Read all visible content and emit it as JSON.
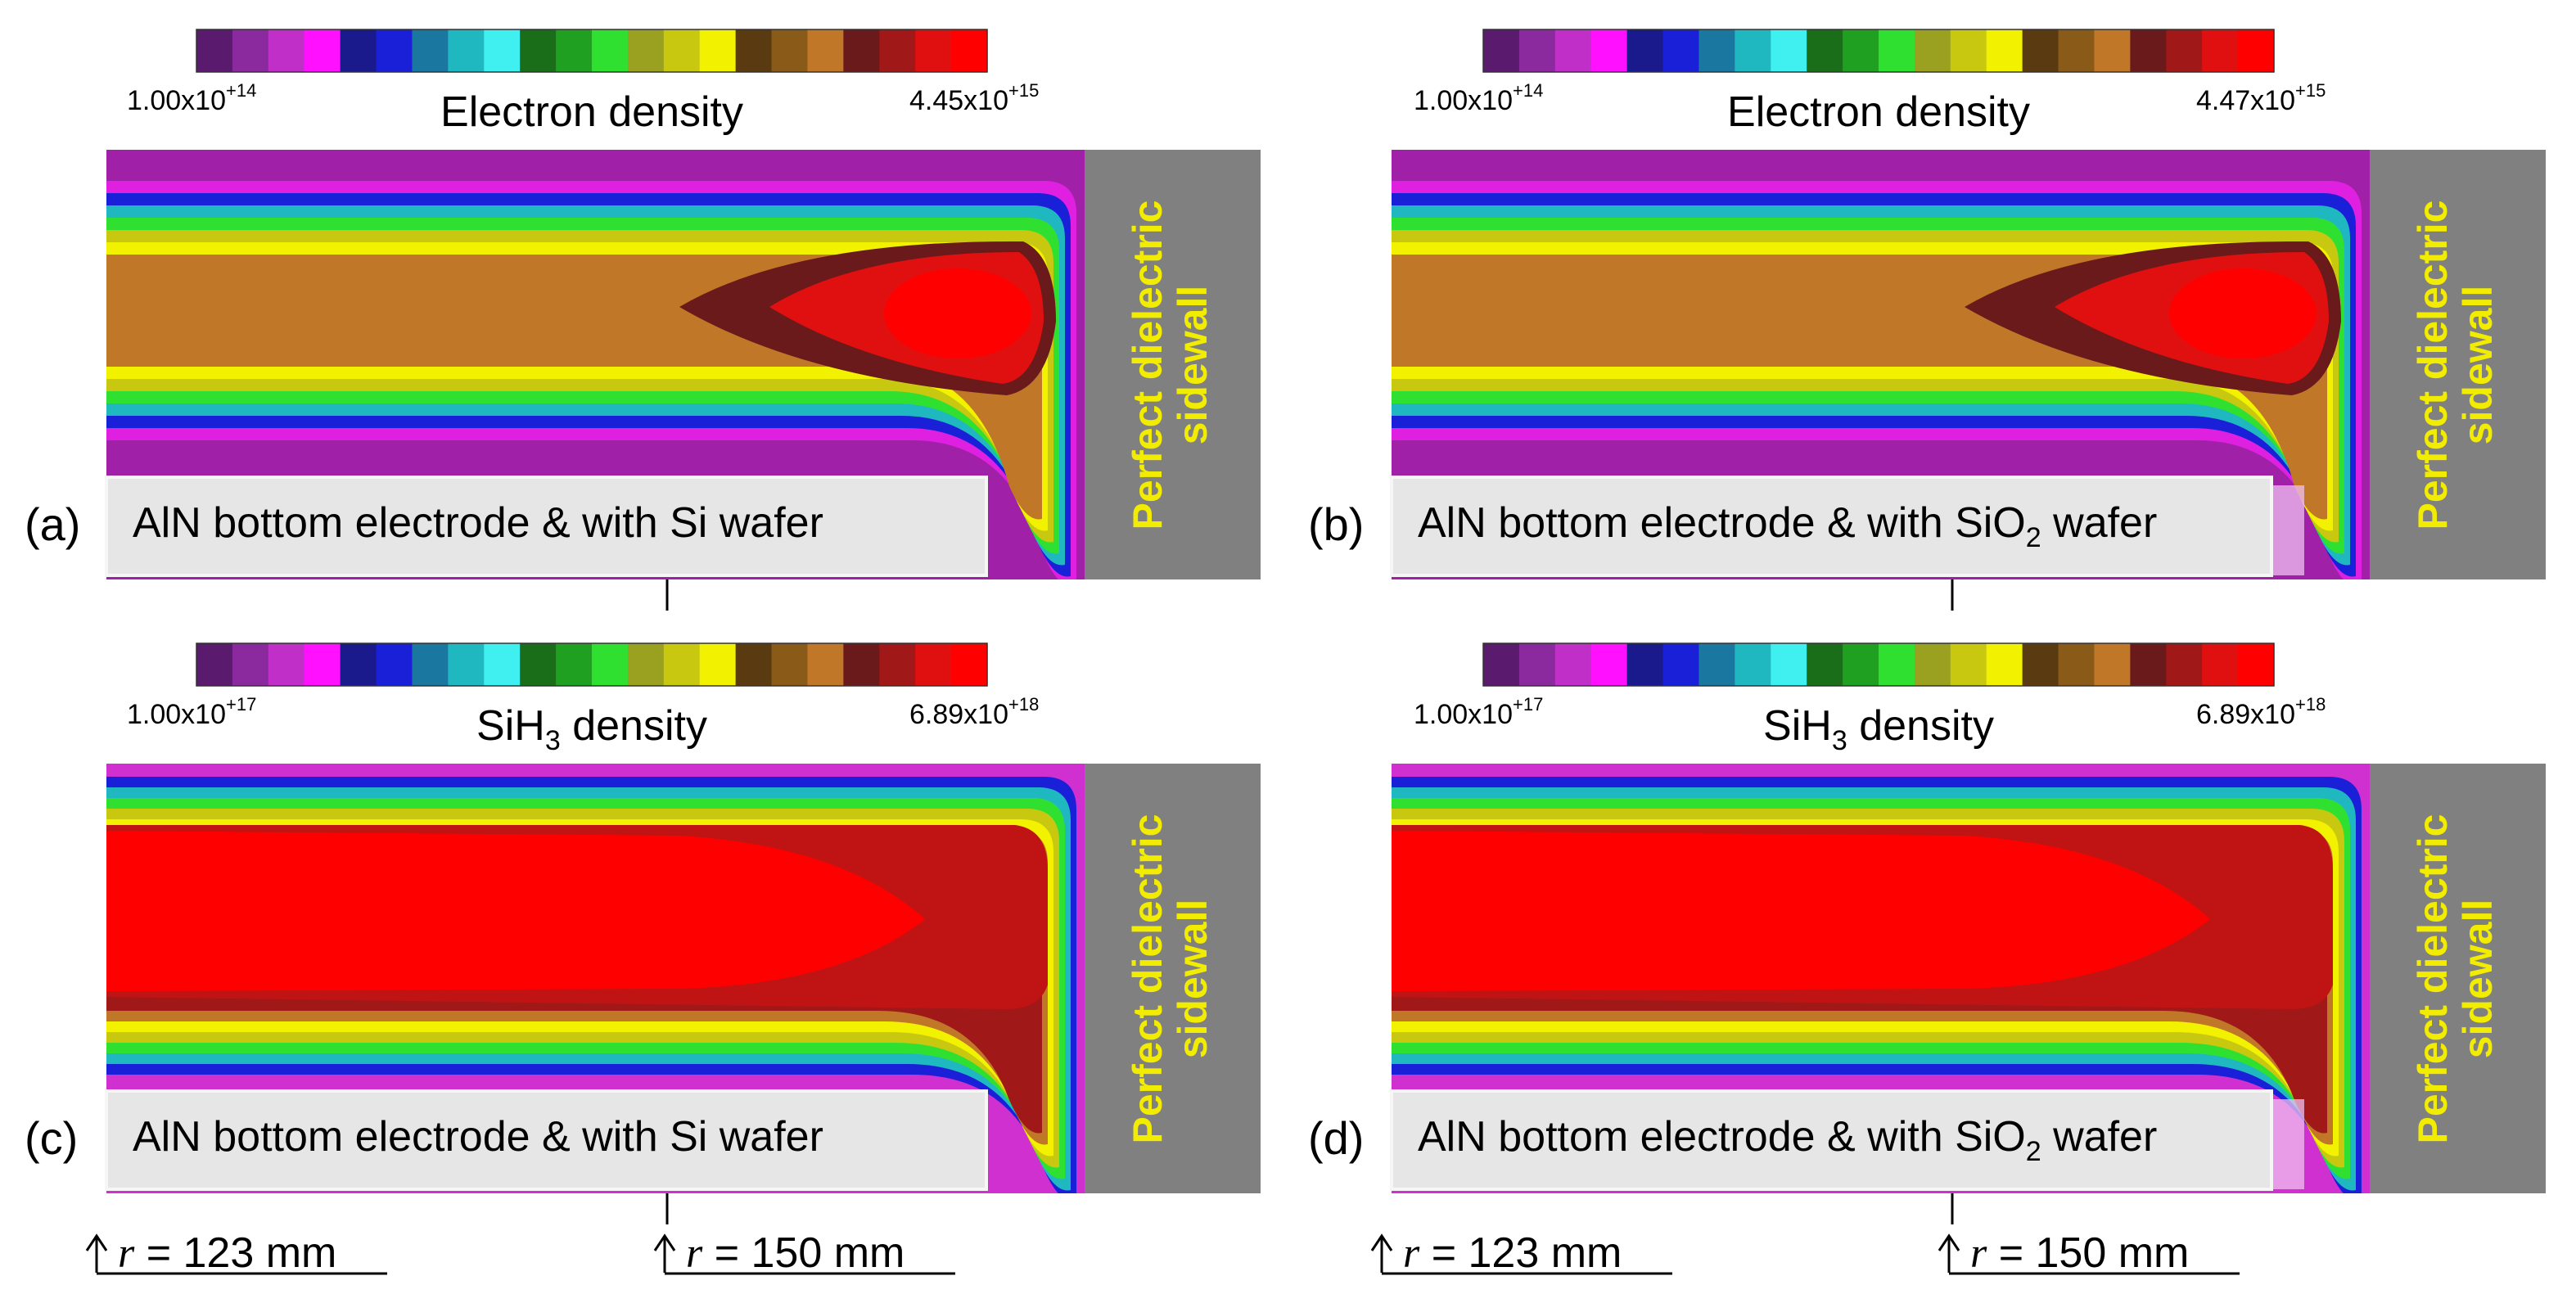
{
  "panels": [
    {
      "letter": "(a)",
      "colorbar": {
        "min_mantissa": "1.00x10",
        "min_exp": "+14",
        "max_mantissa": "4.45x10",
        "max_exp": "+15",
        "title_main": "Electron density",
        "title_sub": "",
        "title_tail": ""
      },
      "bottom_label": {
        "prefix": "AlN bottom electrode & with Si wafer",
        "sub": "",
        "suffix": ""
      },
      "sidewall": [
        "Perfect dielectric",
        "sidewall"
      ],
      "quantity": "electron",
      "wafer": "Si"
    },
    {
      "letter": "(b)",
      "colorbar": {
        "min_mantissa": "1.00x10",
        "min_exp": "+14",
        "max_mantissa": "4.47x10",
        "max_exp": "+15",
        "title_main": "Electron density",
        "title_sub": "",
        "title_tail": ""
      },
      "bottom_label": {
        "prefix": "AlN bottom electrode & with SiO",
        "sub": "2",
        "suffix": " wafer"
      },
      "sidewall": [
        "Perfect dielectric",
        "sidewall"
      ],
      "quantity": "electron",
      "wafer": "SiO2"
    },
    {
      "letter": "(c)",
      "colorbar": {
        "min_mantissa": "1.00x10",
        "min_exp": "+17",
        "max_mantissa": "6.89x10",
        "max_exp": "+18",
        "title_main": "SiH",
        "title_sub": "3",
        "title_tail": " density"
      },
      "bottom_label": {
        "prefix": "AlN bottom electrode & with Si wafer",
        "sub": "",
        "suffix": ""
      },
      "sidewall": [
        "Perfect dielectric",
        "sidewall"
      ],
      "quantity": "sih3",
      "wafer": "Si"
    },
    {
      "letter": "(d)",
      "colorbar": {
        "min_mantissa": "1.00x10",
        "min_exp": "+17",
        "max_mantissa": "6.89x10",
        "max_exp": "+18",
        "title_main": "SiH",
        "title_sub": "3",
        "title_tail": " density"
      },
      "bottom_label": {
        "prefix": "AlN bottom electrode & with SiO",
        "sub": "2",
        "suffix": " wafer"
      },
      "sidewall": [
        "Perfect dielectric",
        "sidewall"
      ],
      "quantity": "sih3",
      "wafer": "SiO2"
    }
  ],
  "radius_markers": {
    "var": "r",
    "left": " = 123 mm",
    "right": " = 150 mm"
  },
  "colormap": [
    "#5a1a6e",
    "#8a2a9e",
    "#c030c8",
    "#ff10ff",
    "#1a1a8c",
    "#1a20d8",
    "#1a78a0",
    "#20b8c0",
    "#40f0f0",
    "#1a6e1a",
    "#20a020",
    "#30e030",
    "#9aa020",
    "#c8c810",
    "#f2f200",
    "#5a3a10",
    "#8a5a18",
    "#c07828",
    "#6a1a1a",
    "#a01818",
    "#e01010",
    "#ff0000"
  ],
  "colors": {
    "sidewall": "#808080",
    "sidewall_text": "#f2ec00",
    "label_box": "#e6e6e6"
  }
}
